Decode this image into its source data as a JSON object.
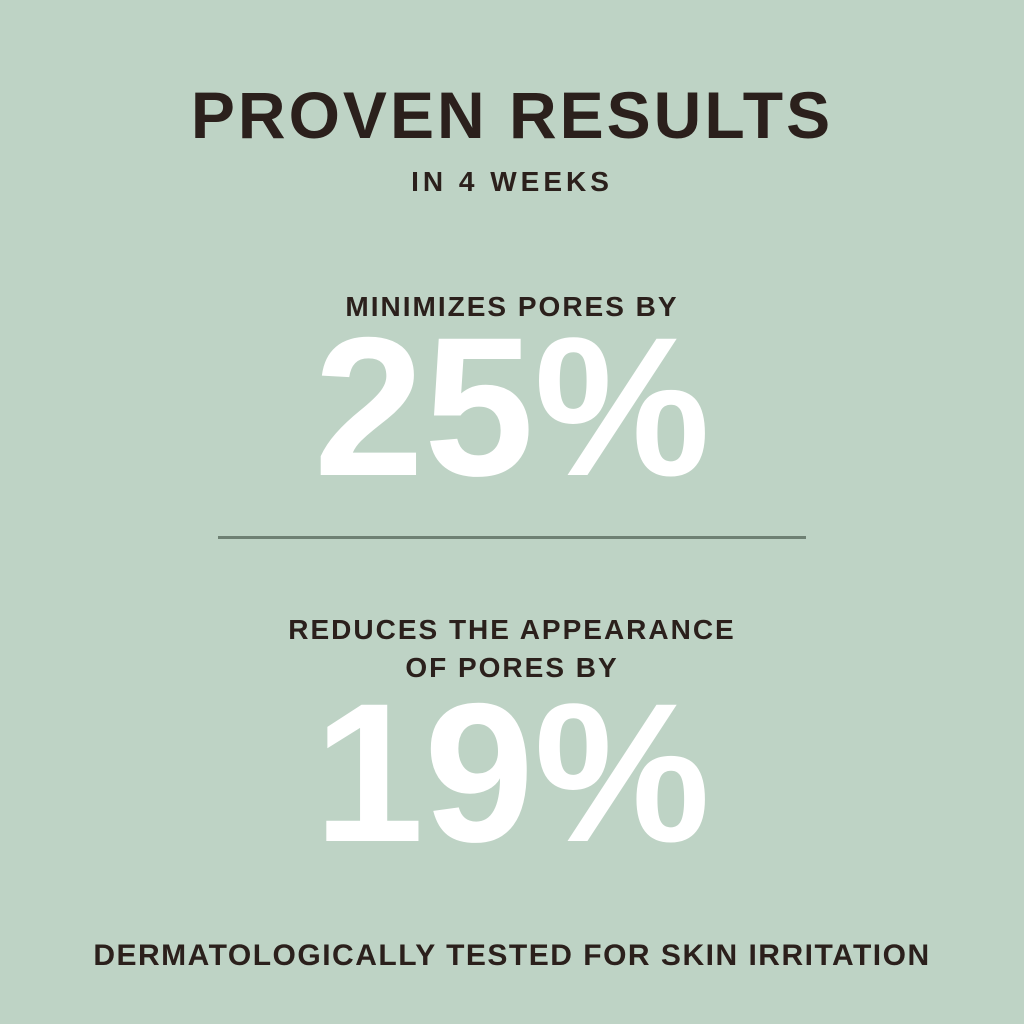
{
  "page": {
    "background_color": "#bed3c5",
    "text_color": "#2b201c",
    "number_color": "#ffffff",
    "divider_color": "#6e8073"
  },
  "header": {
    "title": "PROVEN RESULTS",
    "subtitle": "IN 4 WEEKS"
  },
  "stats": [
    {
      "label": "MINIMIZES PORES BY",
      "value": "25%"
    },
    {
      "label_line1": "REDUCES THE APPEARANCE",
      "label_line2": "OF PORES BY",
      "value": "19%"
    }
  ],
  "footer": {
    "claim": "DERMATOLOGICALLY TESTED FOR SKIN IRRITATION"
  }
}
